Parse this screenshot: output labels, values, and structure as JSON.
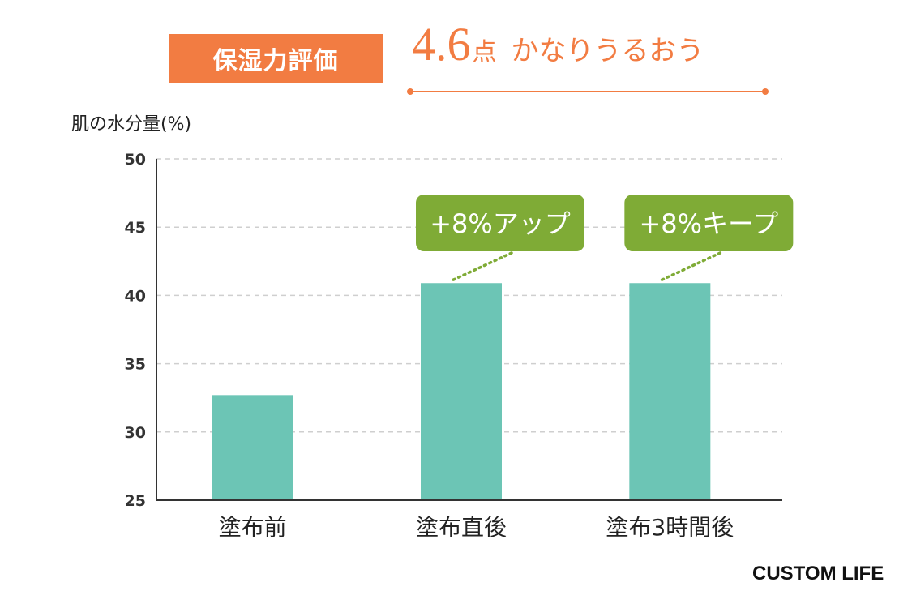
{
  "header": {
    "badge_label": "保湿力評価",
    "score_value": "4.6",
    "score_unit": "点",
    "score_description": "かなりうるおう"
  },
  "brand": {
    "logo_text": "CUSTOM LIFE"
  },
  "colors": {
    "accent": "#f27c42",
    "bar": "#6cc5b5",
    "callout": "#7fab36",
    "grid": "#cfcfcf"
  },
  "chart_data": {
    "type": "bar",
    "ylabel": "肌の水分量(%)",
    "xlabel": "",
    "ylim": [
      25,
      50
    ],
    "yticks": [
      25,
      30,
      35,
      40,
      45,
      50
    ],
    "grid": true,
    "categories": [
      "塗布前",
      "塗布直後",
      "塗布3時間後"
    ],
    "values": [
      32.7,
      40.9,
      40.9
    ],
    "annotations": [
      {
        "category": "塗布直後",
        "text": "+8%アップ"
      },
      {
        "category": "塗布3時間後",
        "text": "+8%キープ"
      }
    ]
  }
}
